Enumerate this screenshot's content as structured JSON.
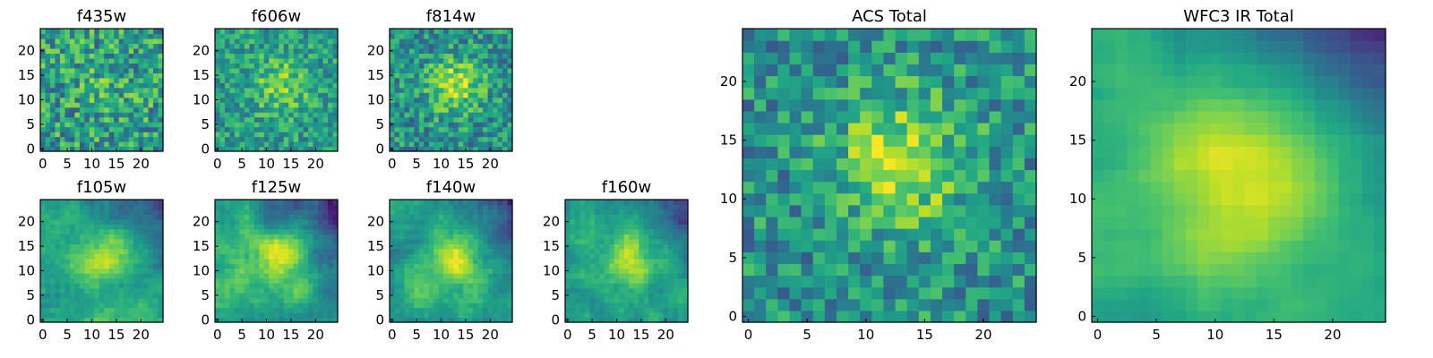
{
  "figure": {
    "panels": [
      {
        "id": "f435w",
        "title": "f435w",
        "seed": 11,
        "style": "noise"
      },
      {
        "id": "f606w",
        "title": "f606w",
        "seed": 23,
        "style": "noise-faint"
      },
      {
        "id": "f814w",
        "title": "f814w",
        "seed": 37,
        "style": "blob-noisy"
      },
      {
        "id": "f105w",
        "title": "f105w",
        "seed": 41,
        "style": "smooth"
      },
      {
        "id": "f125w",
        "title": "f125w",
        "seed": 53,
        "style": "smooth"
      },
      {
        "id": "f140w",
        "title": "f140w",
        "seed": 67,
        "style": "smooth"
      },
      {
        "id": "f160w",
        "title": "f160w",
        "seed": 79,
        "style": "smooth"
      },
      {
        "id": "acs-total",
        "title": "ACS Total",
        "seed": 89,
        "style": "blob-noisy"
      },
      {
        "id": "wfc3-ir-total",
        "title": "WFC3 IR Total",
        "seed": 97,
        "style": "smooth-big"
      }
    ]
  },
  "chart_data": {
    "type": "heatmap",
    "grid_size": [
      25,
      25
    ],
    "colormap": "viridis",
    "small_panel_ticks": {
      "x": [
        0,
        5,
        10,
        15,
        20
      ],
      "y": [
        0,
        5,
        10,
        15,
        20
      ]
    },
    "large_panel_ticks": {
      "x": [
        0,
        5,
        10,
        15,
        20
      ],
      "y": [
        0,
        5,
        10,
        15,
        20
      ]
    },
    "xlim": [
      -0.5,
      24.5
    ],
    "ylim": [
      -0.5,
      24.5
    ],
    "source_center": [
      13,
      13
    ],
    "note_values": "per-pixel values are not labeled; images rendered as a 25x25 intensity map"
  }
}
